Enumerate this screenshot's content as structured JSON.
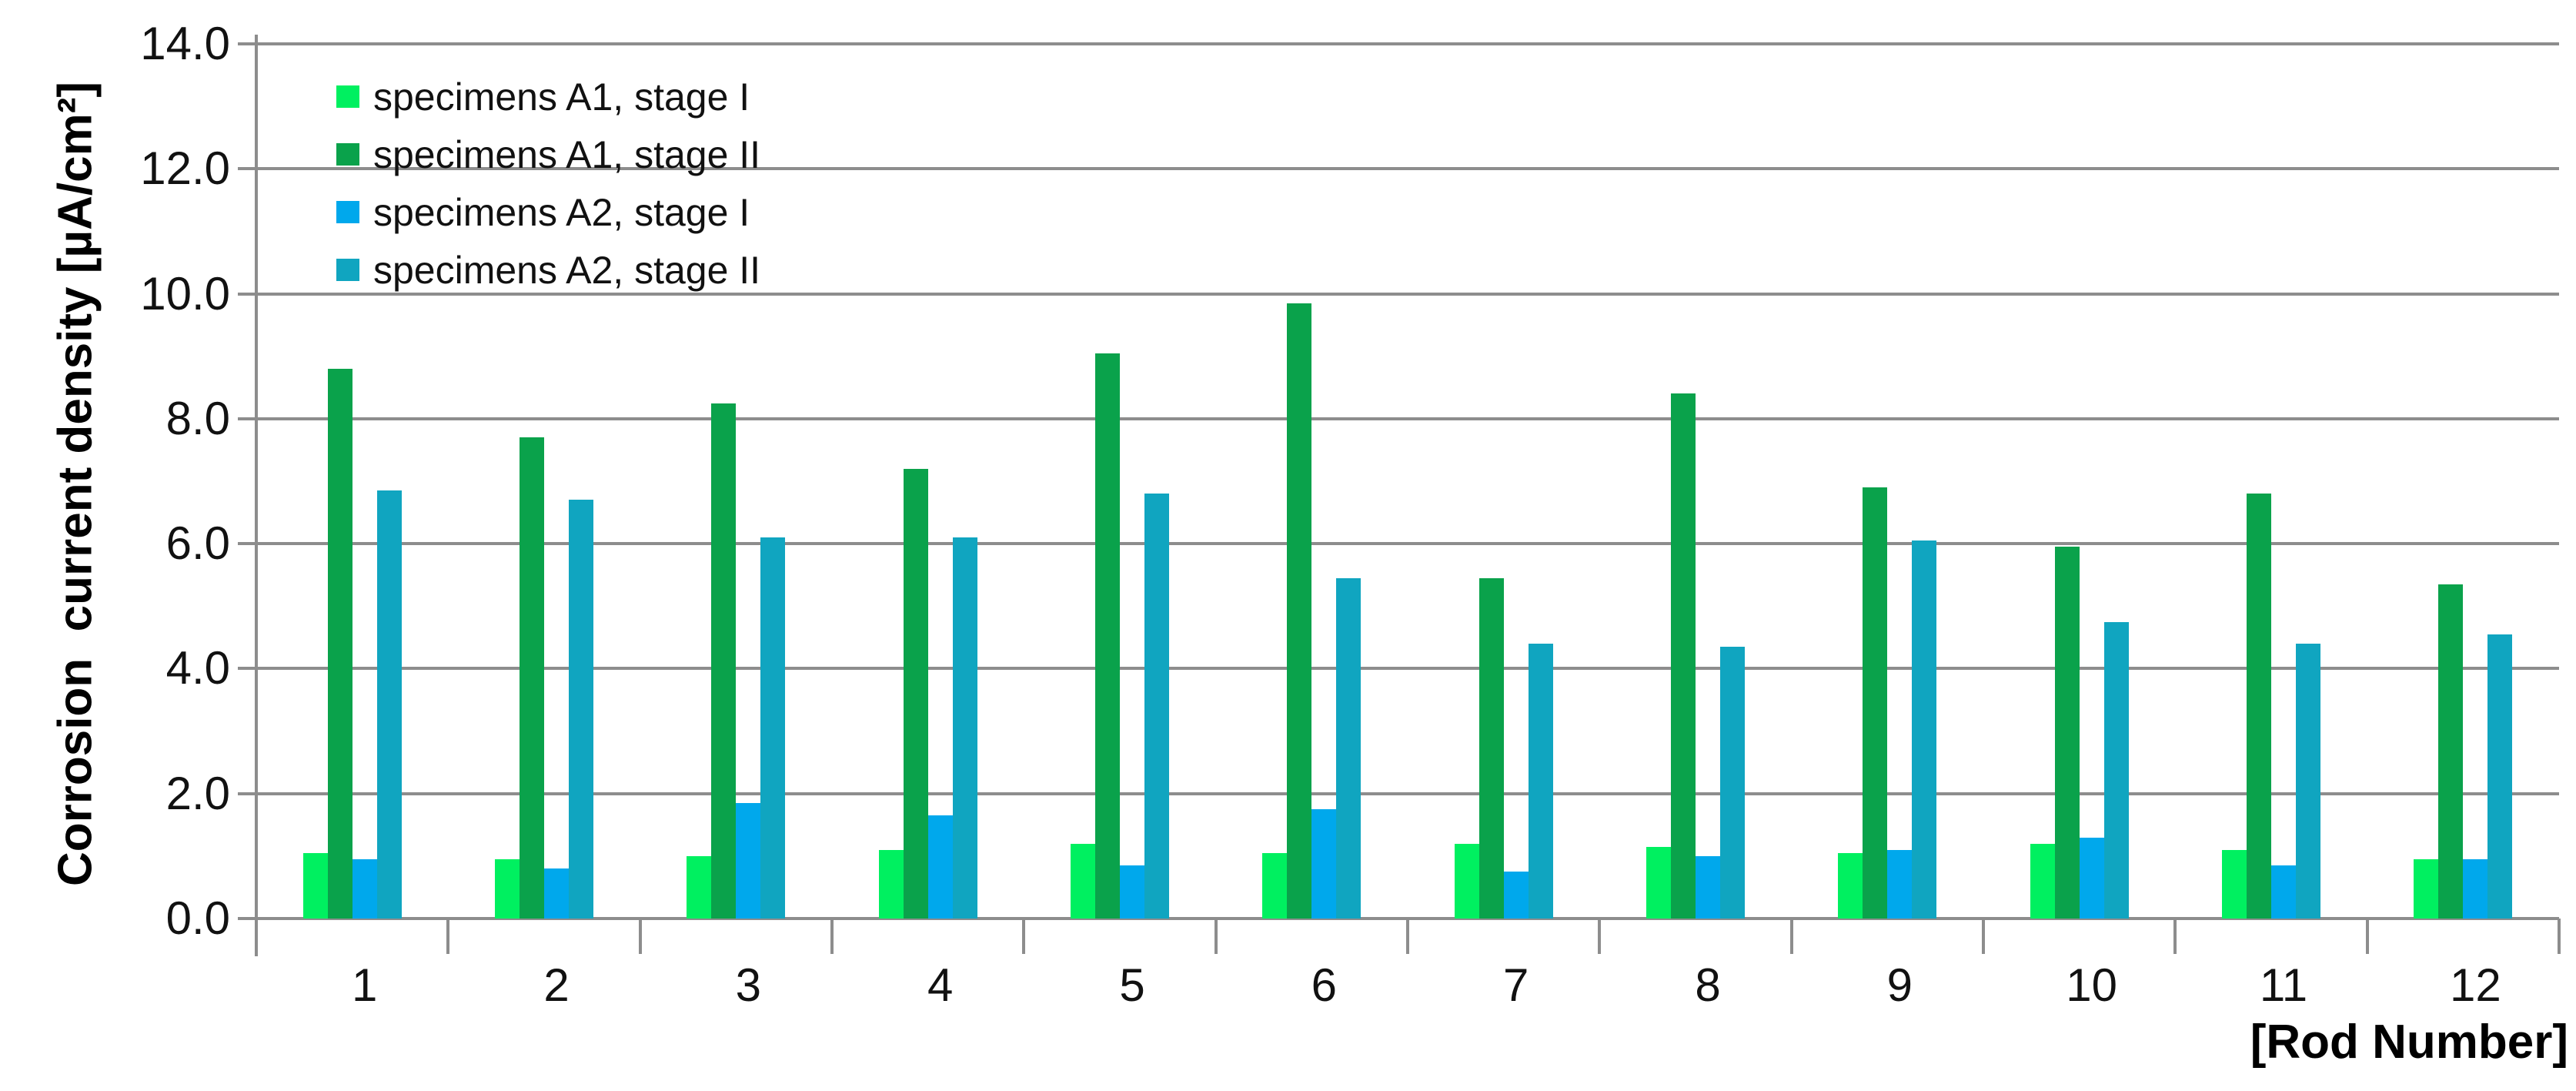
{
  "chart_data": {
    "type": "bar",
    "title": "",
    "categories": [
      "1",
      "2",
      "3",
      "4",
      "5",
      "6",
      "7",
      "8",
      "9",
      "10",
      "11",
      "12"
    ],
    "series": [
      {
        "name": "specimens A1, stage I",
        "color": "#00F060",
        "values": [
          1.05,
          0.95,
          1.0,
          1.1,
          1.2,
          1.05,
          1.2,
          1.15,
          1.05,
          1.2,
          1.1,
          0.95
        ]
      },
      {
        "name": "specimens A1, stage II",
        "color": "#0AA24B",
        "values": [
          8.8,
          7.7,
          8.25,
          7.2,
          9.05,
          9.85,
          5.45,
          8.4,
          6.9,
          5.95,
          6.8,
          5.35
        ]
      },
      {
        "name": "specimens A2, stage I",
        "color": "#00A8EC",
        "values": [
          0.95,
          0.8,
          1.85,
          1.65,
          0.85,
          1.75,
          0.75,
          1.0,
          1.1,
          1.3,
          0.85,
          0.95
        ]
      },
      {
        "name": "specimens A2, stage II",
        "color": "#10A5C0",
        "values": [
          6.85,
          6.7,
          6.1,
          6.1,
          6.8,
          5.45,
          4.4,
          4.35,
          6.05,
          4.75,
          4.4,
          4.55
        ]
      }
    ],
    "ylabel": "Corrosion  current density [µA/cm²]",
    "xlabel": "[Rod Number]",
    "ylim": [
      0,
      14
    ],
    "ytick_step": 2,
    "ytick_labels": [
      "0.0",
      "2.0",
      "4.0",
      "6.0",
      "8.0",
      "10.0",
      "12.0",
      "14.0"
    ],
    "grid": true,
    "legend_position": "top-left-inside"
  },
  "colors": {
    "grid": "#8d8d8d",
    "axis": "#8d8d8d",
    "text": "#111111",
    "background": "#ffffff"
  }
}
